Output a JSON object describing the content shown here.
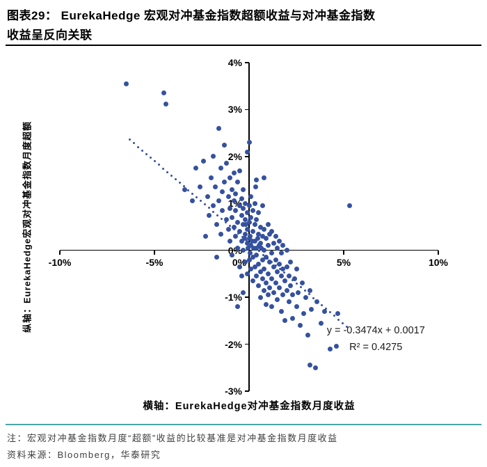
{
  "title": {
    "line1": "图表29：  EurekaHedge 宏观对冲基金指数超额收益与对冲基金指数",
    "line2": "收益呈反向关联"
  },
  "axis_captions": {
    "y_caption": "纵轴：EurekaHedge宏观对冲基金指数月度超额",
    "x_caption": "横轴：EurekaHedge对冲基金指数月度收益"
  },
  "notes": {
    "note1": "注：宏观对冲基金指数月度“超额”收益的比较基准是对冲基金指数月度收益",
    "source": "资料来源：Bloomberg，华泰研究"
  },
  "colors": {
    "point": "#35519F",
    "trend": "#35519F",
    "axis": "#000000",
    "divider": "#4AA5A5",
    "note_text": "#3F3F3F"
  },
  "chart_data": {
    "type": "scatter",
    "x_range": [
      -10,
      10
    ],
    "y_range": [
      -3,
      4
    ],
    "x_ticks": [
      -10,
      -5,
      0,
      5,
      10
    ],
    "y_ticks": [
      4,
      3,
      2,
      1,
      0,
      -1,
      -2,
      -3
    ],
    "tick_suffix": "%",
    "grid": false,
    "trendline": {
      "slope": -0.3474,
      "intercept_pct": 0.17,
      "x_start": -6.3,
      "x_end": 5.2,
      "style": "dotted"
    },
    "annotation": {
      "line1": "y = -0.3474x + 0.0017",
      "line2": "R² = 0.4275",
      "x": 6.7,
      "y": -1.9
    },
    "points": [
      [
        -6.5,
        3.55
      ],
      [
        -4.5,
        3.35
      ],
      [
        -4.4,
        3.12
      ],
      [
        -3.4,
        1.3
      ],
      [
        -3.0,
        1.05
      ],
      [
        -2.8,
        1.75
      ],
      [
        -2.6,
        1.35
      ],
      [
        -2.4,
        1.9
      ],
      [
        -2.3,
        0.3
      ],
      [
        -2.2,
        1.15
      ],
      [
        -2.1,
        0.75
      ],
      [
        -2.0,
        1.55
      ],
      [
        -1.9,
        2.0
      ],
      [
        -1.9,
        0.95
      ],
      [
        -1.8,
        1.35
      ],
      [
        -1.7,
        0.55
      ],
      [
        -1.7,
        -0.15
      ],
      [
        -1.6,
        2.6
      ],
      [
        -1.6,
        1.05
      ],
      [
        -1.5,
        1.75
      ],
      [
        -1.5,
        0.35
      ],
      [
        -1.4,
        1.25
      ],
      [
        -1.4,
        0.85
      ],
      [
        -1.3,
        2.25
      ],
      [
        -1.3,
        1.45
      ],
      [
        -1.2,
        0.65
      ],
      [
        -1.2,
        1.85
      ],
      [
        -1.1,
        1.15
      ],
      [
        -1.1,
        0.45
      ],
      [
        -1.0,
        1.55
      ],
      [
        -1.0,
        0.9
      ],
      [
        -1.0,
        0.2
      ],
      [
        -0.9,
        1.3
      ],
      [
        -0.9,
        0.7
      ],
      [
        -0.9,
        -0.1
      ],
      [
        -0.8,
        1.05
      ],
      [
        -0.8,
        0.5
      ],
      [
        -0.8,
        1.65
      ],
      [
        -0.7,
        0.85
      ],
      [
        -0.7,
        0.3
      ],
      [
        -0.7,
        1.2
      ],
      [
        -0.6,
        0.6
      ],
      [
        -0.6,
        1.45
      ],
      [
        -0.6,
        0.05
      ],
      [
        -0.6,
        -1.2
      ],
      [
        -0.5,
        0.95
      ],
      [
        -0.5,
        0.4
      ],
      [
        -0.5,
        -0.35
      ],
      [
        -0.5,
        1.7
      ],
      [
        -0.4,
        0.75
      ],
      [
        -0.4,
        0.2
      ],
      [
        -0.4,
        1.1
      ],
      [
        -0.4,
        -0.55
      ],
      [
        -0.3,
        0.55
      ],
      [
        -0.3,
        1.3
      ],
      [
        -0.3,
        0.0
      ],
      [
        -0.3,
        0.9
      ],
      [
        -0.3,
        -0.9
      ],
      [
        -0.25,
        0.25
      ],
      [
        -0.2,
        0.35
      ],
      [
        -0.2,
        1.0
      ],
      [
        -0.2,
        -0.25
      ],
      [
        -0.2,
        0.65
      ],
      [
        -0.15,
        0.55
      ],
      [
        -0.1,
        0.15
      ],
      [
        -0.1,
        0.8
      ],
      [
        -0.1,
        -0.5
      ],
      [
        -0.1,
        0.45
      ],
      [
        -0.1,
        2.1
      ],
      [
        -0.05,
        0.05
      ],
      [
        0.0,
        0.25
      ],
      [
        0.0,
        0.95
      ],
      [
        0.0,
        -0.2
      ],
      [
        0.0,
        0.6
      ],
      [
        0.0,
        2.3
      ],
      [
        0.05,
        0.3
      ],
      [
        0.05,
        -0.05
      ],
      [
        0.1,
        0.1
      ],
      [
        0.1,
        0.7
      ],
      [
        0.1,
        -0.4
      ],
      [
        0.1,
        1.15
      ],
      [
        0.15,
        0.2
      ],
      [
        0.2,
        0.4
      ],
      [
        0.2,
        -0.15
      ],
      [
        0.2,
        0.85
      ],
      [
        0.2,
        -0.65
      ],
      [
        0.25,
        0.05
      ],
      [
        0.3,
        0.2
      ],
      [
        0.3,
        0.55
      ],
      [
        0.3,
        -0.35
      ],
      [
        0.3,
        1.0
      ],
      [
        0.35,
        1.35
      ],
      [
        0.4,
        0.05
      ],
      [
        0.4,
        -0.55
      ],
      [
        0.4,
        0.65
      ],
      [
        0.4,
        -0.1
      ],
      [
        0.4,
        1.5
      ],
      [
        0.45,
        0.25
      ],
      [
        0.5,
        0.35
      ],
      [
        0.5,
        -0.3
      ],
      [
        0.5,
        0.8
      ],
      [
        0.5,
        -0.75
      ],
      [
        0.55,
        0.1
      ],
      [
        0.6,
        0.15
      ],
      [
        0.6,
        -0.45
      ],
      [
        0.6,
        0.5
      ],
      [
        0.6,
        -1.0
      ],
      [
        0.65,
        0.05
      ],
      [
        0.7,
        -0.2
      ],
      [
        0.7,
        0.3
      ],
      [
        0.7,
        -0.6
      ],
      [
        0.7,
        0.95
      ],
      [
        0.8,
        0.0
      ],
      [
        0.8,
        -0.85
      ],
      [
        0.8,
        0.45
      ],
      [
        0.8,
        -0.4
      ],
      [
        0.8,
        1.55
      ],
      [
        0.9,
        -0.15
      ],
      [
        0.9,
        0.25
      ],
      [
        0.9,
        -0.7
      ],
      [
        0.9,
        -1.15
      ],
      [
        1.0,
        0.1
      ],
      [
        1.0,
        -0.5
      ],
      [
        1.0,
        0.55
      ],
      [
        1.0,
        -0.95
      ],
      [
        1.1,
        -0.25
      ],
      [
        1.1,
        0.35
      ],
      [
        1.1,
        -0.8
      ],
      [
        1.2,
        -0.05
      ],
      [
        1.2,
        -0.6
      ],
      [
        1.2,
        0.4
      ],
      [
        1.2,
        -1.2
      ],
      [
        1.3,
        -0.35
      ],
      [
        1.3,
        0.15
      ],
      [
        1.3,
        -0.9
      ],
      [
        1.4,
        -0.2
      ],
      [
        1.4,
        -0.7
      ],
      [
        1.4,
        0.3
      ],
      [
        1.5,
        -0.45
      ],
      [
        1.5,
        -1.05
      ],
      [
        1.5,
        0.05
      ],
      [
        1.6,
        -0.3
      ],
      [
        1.6,
        -0.8
      ],
      [
        1.6,
        0.2
      ],
      [
        1.7,
        -0.55
      ],
      [
        1.7,
        -1.3
      ],
      [
        1.7,
        -0.05
      ],
      [
        1.8,
        -0.4
      ],
      [
        1.8,
        -0.95
      ],
      [
        1.8,
        0.1
      ],
      [
        1.9,
        -0.65
      ],
      [
        1.9,
        -1.5
      ],
      [
        2.0,
        -0.35
      ],
      [
        2.0,
        -0.85
      ],
      [
        2.0,
        0.0
      ],
      [
        2.1,
        -0.55
      ],
      [
        2.1,
        -1.1
      ],
      [
        2.2,
        -0.75
      ],
      [
        2.2,
        -0.25
      ],
      [
        2.3,
        -0.95
      ],
      [
        2.3,
        -1.45
      ],
      [
        2.4,
        -0.6
      ],
      [
        2.5,
        -1.2
      ],
      [
        2.5,
        -0.4
      ],
      [
        2.6,
        -0.9
      ],
      [
        2.7,
        -1.6
      ],
      [
        2.8,
        -0.7
      ],
      [
        2.9,
        -1.35
      ],
      [
        3.0,
        -1.0
      ],
      [
        3.1,
        -1.8
      ],
      [
        3.2,
        -0.85
      ],
      [
        3.2,
        -2.45
      ],
      [
        3.3,
        -1.25
      ],
      [
        3.5,
        -2.5
      ],
      [
        3.6,
        -1.1
      ],
      [
        3.8,
        -1.55
      ],
      [
        4.0,
        -1.3
      ],
      [
        4.3,
        -2.1
      ],
      [
        4.6,
        -2.05
      ],
      [
        4.7,
        -1.35
      ],
      [
        5.3,
        0.95
      ]
    ]
  }
}
